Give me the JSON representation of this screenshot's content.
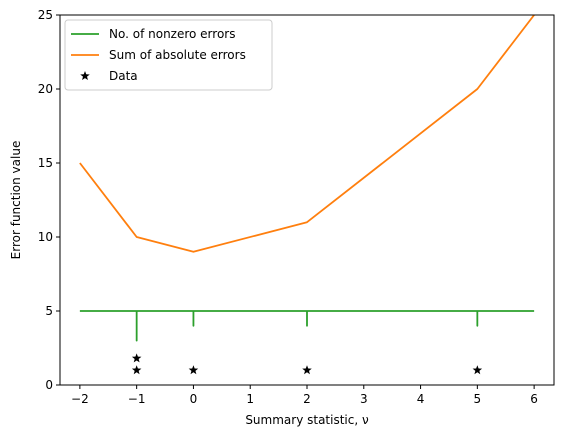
{
  "chart_data": {
    "type": "line",
    "title": "",
    "xlabel": "Summary statistic, ν",
    "ylabel": "Error function value",
    "xlim": [
      -2.35,
      6.35
    ],
    "ylim": [
      0,
      25
    ],
    "xticks": [
      -2,
      -1,
      0,
      1,
      2,
      3,
      4,
      5,
      6
    ],
    "yticks": [
      0,
      5,
      10,
      15,
      20,
      25
    ],
    "grid": false,
    "legend_position": "top-left",
    "series": [
      {
        "name": "No. of nonzero errors",
        "color": "#2ca02c",
        "x": [
          -2,
          -1,
          -1,
          -1,
          0,
          0,
          0,
          2,
          2,
          2,
          5,
          5,
          5,
          6
        ],
        "y": [
          5,
          5,
          3,
          5,
          5,
          4,
          5,
          5,
          4,
          5,
          5,
          4,
          5,
          5
        ]
      },
      {
        "name": "Sum of absolute errors",
        "color": "#ff7f0e",
        "x": [
          -2,
          -1,
          0,
          2,
          5,
          6
        ],
        "y": [
          15,
          10,
          9,
          11,
          20,
          25
        ]
      },
      {
        "name": "Data",
        "type": "scatter",
        "marker": "star",
        "color": "#000000",
        "x": [
          -1,
          -1,
          0,
          2,
          5
        ],
        "y": [
          1.8,
          1,
          1,
          1,
          1
        ]
      }
    ]
  }
}
